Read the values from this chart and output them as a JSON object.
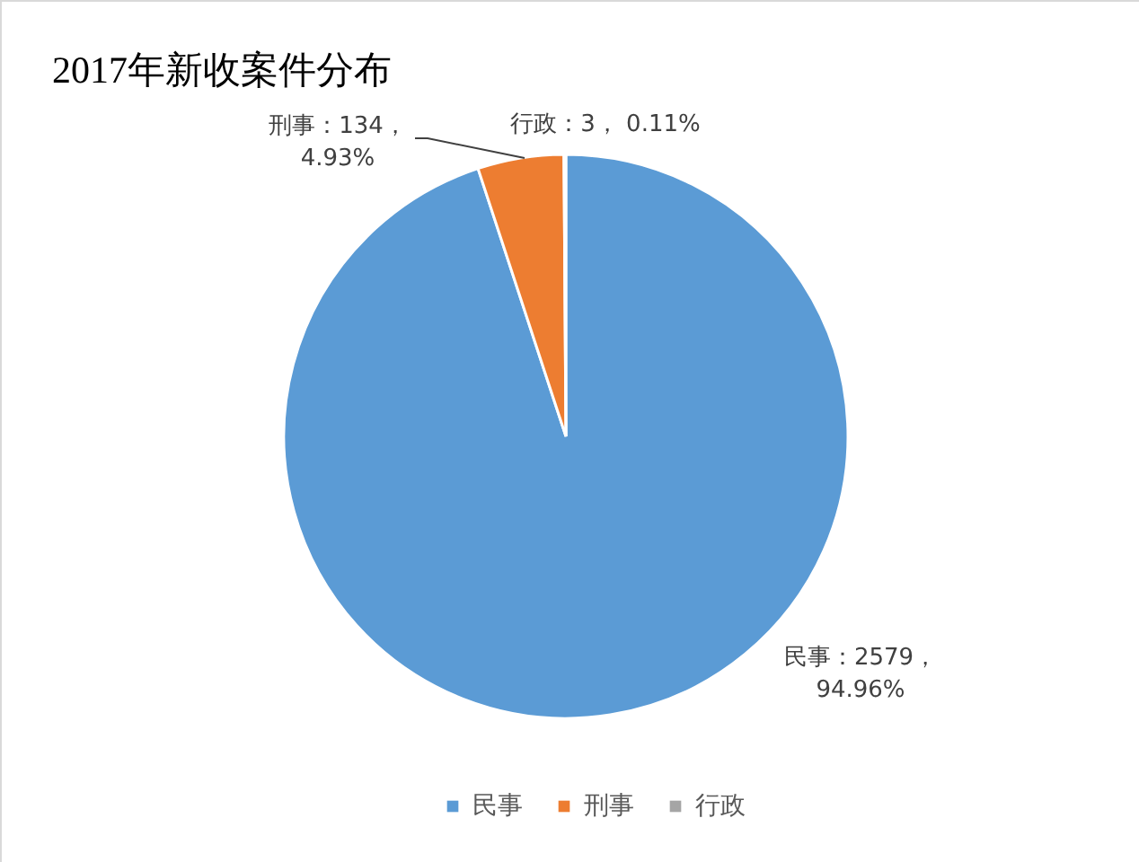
{
  "chart_data": {
    "type": "pie",
    "title": "2017年新收案件分布",
    "categories": [
      "民事",
      "刑事",
      "行政"
    ],
    "values": [
      2579,
      134,
      3
    ],
    "colors": [
      "#5b9bd5",
      "#ed7d31",
      "#a5a5a5"
    ],
    "value_labels": [
      "民事：2579，\n94.96%",
      "刑事：134，\n4.93%",
      "行政：3， 0.11%"
    ],
    "legend": "bottom"
  }
}
